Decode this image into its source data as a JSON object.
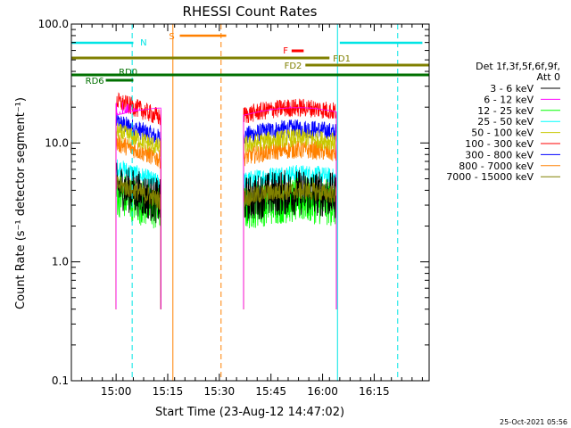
{
  "chart_data": {
    "type": "line",
    "title": "RHESSI Count Rates",
    "xlabel": "Start Time (23-Aug-12 14:47:02)",
    "ylabel": "Count Rate (s⁻¹ detector segment⁻¹)",
    "yscale": "log",
    "ylim": [
      0.1,
      100
    ],
    "xlim": [
      "14:47:02",
      "16:31:00"
    ],
    "x_tick_labels": [
      "15:00",
      "15:15",
      "15:30",
      "15:45",
      "16:00",
      "16:15"
    ],
    "y_tick_labels": [
      "0.1",
      "1.0",
      "10.0",
      "100.0"
    ],
    "x_ticks_min": [
      780,
      1680,
      2580,
      3480,
      4380,
      5280
    ],
    "y_ticks": [
      0.1,
      1,
      10,
      100
    ],
    "legend_title": [
      "Det 1f,3f,5f,6f,9f,",
      "Att 0"
    ],
    "legend_placement": "right",
    "series": [
      {
        "name": "3 - 6 keV",
        "color": "#000000",
        "base": 3.5
      },
      {
        "name": "6 - 12 keV",
        "color": "#ff00ff",
        "base": 13
      },
      {
        "name": "12 - 25 keV",
        "color": "#00ff00",
        "base": 3.0
      },
      {
        "name": "25 - 50 keV",
        "color": "#00ffff",
        "base": 5.0
      },
      {
        "name": "50 - 100 keV",
        "color": "#c8c800",
        "base": 10
      },
      {
        "name": "100 - 300 keV",
        "color": "#ff0000",
        "base": 18
      },
      {
        "name": "300 - 800 keV",
        "color": "#0000ff",
        "base": 12
      },
      {
        "name": "800 - 7000 keV",
        "color": "#ff8000",
        "base": 8.0
      },
      {
        "name": "7000 - 15000 keV",
        "color": "#808000",
        "base": 3.6
      }
    ],
    "segments_min": [
      [
        780,
        1560
      ],
      [
        3000,
        4620
      ]
    ],
    "annotations": {
      "N": {
        "label": "N",
        "color": "#00e5e5",
        "start": 0,
        "end": 1080
      },
      "N2": {
        "label": "",
        "color": "#00e5e5",
        "start": 4680,
        "end": 6120
      },
      "S": {
        "label": "S",
        "color": "#ff8000",
        "start": 1890,
        "end": 2700
      },
      "F": {
        "label": "F",
        "color": "#ff0000",
        "start": 3840,
        "end": 4050
      },
      "FD1": {
        "label": "FD1",
        "color": "#808000",
        "start": 0,
        "end": 4500
      },
      "FD2": {
        "label": "FD2",
        "color": "#808000",
        "start": 4080,
        "end": 6300
      },
      "RD0": {
        "label": "RD0",
        "color": "#007000",
        "start": 0,
        "end": 6300
      },
      "RD6": {
        "label": "RD6",
        "color": "#007000",
        "start": 600,
        "end": 1080
      }
    },
    "vlines_min": [
      {
        "t": 1060,
        "color": "#00e5e5",
        "dash": true
      },
      {
        "t": 1770,
        "color": "#ff8000",
        "dash": false
      },
      {
        "t": 2610,
        "color": "#ff8000",
        "dash": true
      },
      {
        "t": 4640,
        "color": "#00e5e5",
        "dash": false
      },
      {
        "t": 5690,
        "color": "#00e5e5",
        "dash": true
      }
    ],
    "footer_timestamp": "25-Oct-2021 05:56"
  }
}
